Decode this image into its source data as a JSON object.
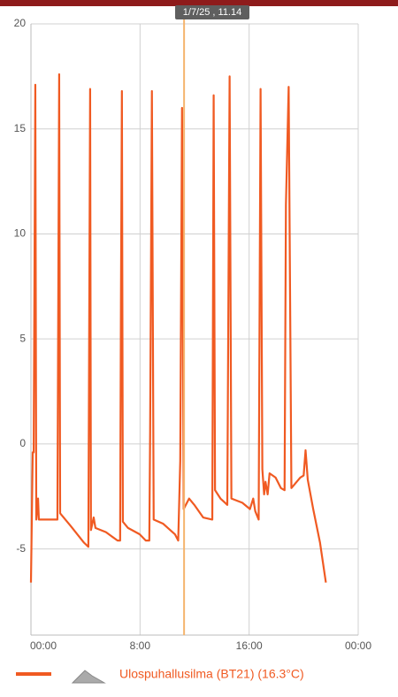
{
  "chart_data": {
    "type": "line",
    "cursor": {
      "label": "1/7/25 , 11.14",
      "x": 11.23
    },
    "x": [
      0,
      0.13,
      0.2,
      0.32,
      0.39,
      0.52,
      0.58,
      1.94,
      2.07,
      2.14,
      2.91,
      3.89,
      4.21,
      4.34,
      4.4,
      4.6,
      4.73,
      5.5,
      6.35,
      6.54,
      6.6,
      6.67,
      6.74,
      7.12,
      7.97,
      8.42,
      8.68,
      8.74,
      8.87,
      9.0,
      9.7,
      10.56,
      10.8,
      10.95,
      11.08,
      11.2,
      11.6,
      11.98,
      12.63,
      13.3,
      13.4,
      13.5,
      13.9,
      14.4,
      14.57,
      14.7,
      15.5,
      16.06,
      16.3,
      16.45,
      16.7,
      16.84,
      16.97,
      17.1,
      17.2,
      17.36,
      17.5,
      17.94,
      18.33,
      18.6,
      18.7,
      18.9,
      19.1,
      19.75,
      20.0,
      20.14,
      20.3,
      20.7,
      21.2,
      21.63
    ],
    "series": [
      {
        "name": "Ulospuhallusilma (BT21) (16.3°C)",
        "color": "#f05a22",
        "values": [
          -6.6,
          -0.4,
          -0.4,
          17.1,
          -3.6,
          -2.6,
          -3.6,
          -3.6,
          17.6,
          -3.3,
          -3.9,
          -4.7,
          -4.9,
          16.9,
          -4.1,
          -3.5,
          -4.0,
          -4.2,
          -4.6,
          -4.6,
          6.7,
          16.8,
          -3.7,
          -4.0,
          -4.3,
          -4.6,
          -4.6,
          0.5,
          16.8,
          -3.6,
          -3.8,
          -4.3,
          -4.6,
          -0.8,
          16.0,
          -3.1,
          -2.6,
          -2.9,
          -3.5,
          -3.6,
          16.6,
          -2.2,
          -2.6,
          -2.9,
          17.5,
          -2.6,
          -2.8,
          -3.1,
          -2.6,
          -3.2,
          -3.6,
          16.9,
          -1.2,
          -2.4,
          -1.8,
          -2.4,
          -1.4,
          -1.6,
          -2.1,
          -2.2,
          11.4,
          17.0,
          -2.1,
          -1.6,
          -1.5,
          -0.3,
          -1.7,
          -3.1,
          -4.7,
          -6.6
        ]
      }
    ],
    "xlim": [
      0,
      24
    ],
    "xticks": [
      {
        "value": 0,
        "label": "00:00"
      },
      {
        "value": 8,
        "label": "8:00"
      },
      {
        "value": 16,
        "label": "16:00"
      },
      {
        "value": 24,
        "label": "00:00"
      }
    ],
    "ylim": [
      -9.1,
      20
    ],
    "yticks": [
      -5,
      0,
      5,
      10,
      15,
      20
    ],
    "grid": true
  }
}
